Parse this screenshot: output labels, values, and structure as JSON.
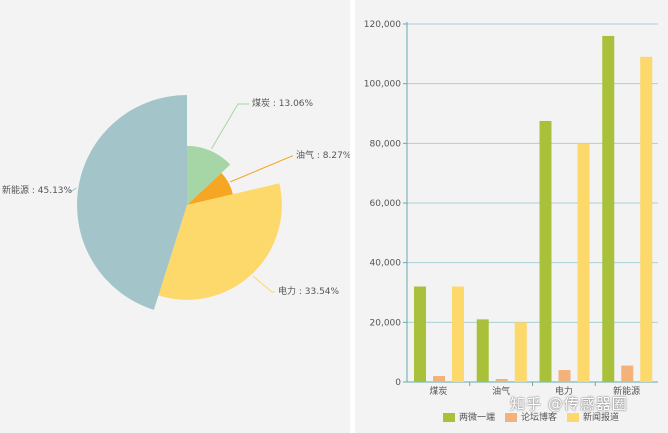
{
  "watermark": "知乎 @传感器圈",
  "chart_data": [
    {
      "type": "pie",
      "variant": "rose",
      "slices": [
        {
          "label": "煤炭 : 13.06%",
          "value": 13.06,
          "color": "#a6d6a6"
        },
        {
          "label": "油气 : 8.27%",
          "value": 8.27,
          "color": "#f5a623"
        },
        {
          "label": "电力 : 33.54%",
          "value": 33.54,
          "color": "#fdd86a"
        },
        {
          "label": "新能源 : 45.13%",
          "value": 45.13,
          "color": "#a3c4c9"
        }
      ]
    },
    {
      "type": "bar",
      "categories": [
        "煤炭",
        "油气",
        "电力",
        "新能源"
      ],
      "series": [
        {
          "name": "两微一端",
          "color": "#a9c13a",
          "values": [
            32000,
            21000,
            87500,
            116000
          ]
        },
        {
          "name": "论坛博客",
          "color": "#f2b27a",
          "values": [
            2000,
            1000,
            4000,
            5500
          ]
        },
        {
          "name": "新闻报道",
          "color": "#fdd86a",
          "values": [
            32000,
            20000,
            80000,
            109000
          ]
        }
      ],
      "ylim": [
        0,
        120000
      ],
      "yticks": [
        "0",
        "20,000",
        "40,000",
        "60,000",
        "80,000",
        "100,000",
        "120,000"
      ],
      "grid": true,
      "legend": "bottom"
    }
  ]
}
